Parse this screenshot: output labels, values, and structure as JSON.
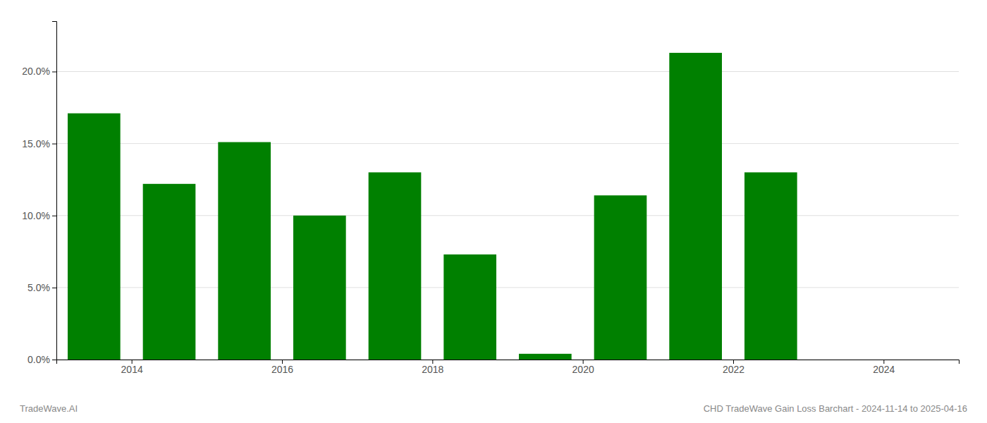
{
  "chart_data": {
    "type": "bar",
    "x": [
      2013,
      2014,
      2015,
      2016,
      2017,
      2018,
      2019,
      2020,
      2021,
      2022,
      2023
    ],
    "values": [
      0.171,
      0.122,
      0.151,
      0.1,
      0.13,
      0.073,
      0.004,
      0.114,
      0.213,
      0.13,
      0.0
    ],
    "color": "#008000",
    "xlim": [
      2012.5,
      2024.5
    ],
    "xticks": [
      {
        "value": 2013.5,
        "label": "2014"
      },
      {
        "value": 2015.5,
        "label": "2016"
      },
      {
        "value": 2017.5,
        "label": "2018"
      },
      {
        "value": 2019.5,
        "label": "2020"
      },
      {
        "value": 2021.5,
        "label": "2022"
      },
      {
        "value": 2023.5,
        "label": "2024"
      }
    ],
    "ylim": [
      0,
      0.235
    ],
    "yticks": [
      {
        "value": 0.0,
        "label": "0.0%"
      },
      {
        "value": 0.05,
        "label": "5.0%"
      },
      {
        "value": 0.1,
        "label": "10.0%"
      },
      {
        "value": 0.15,
        "label": "15.0%"
      },
      {
        "value": 0.2,
        "label": "20.0%"
      }
    ],
    "grid": true,
    "annotations": [
      "TradeWave.AI",
      "CHD TradeWave Gain Loss Barchart - 2024-11-14 to 2025-04-16"
    ]
  }
}
